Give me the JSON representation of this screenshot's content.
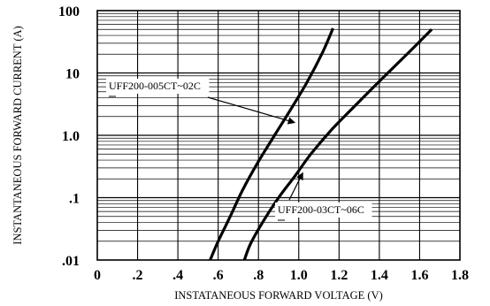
{
  "chart_data": {
    "type": "line",
    "title": "",
    "xlabel": "INSTATANEOUS FORWARD VOLTAGE (V)",
    "ylabel": "INSTANTANEOUS FORWARD CURRENT (A)",
    "xlim": [
      0,
      1.8
    ],
    "ylim": [
      0.01,
      100
    ],
    "y_scale": "log",
    "grid": true,
    "x_ticks": [
      "0",
      ".2",
      ".4",
      ".6",
      ".8",
      "1.0",
      "1.2",
      "1.4",
      "1.6",
      "1.8"
    ],
    "y_ticks": [
      ".01",
      ".1",
      "1.0",
      "10",
      "100"
    ],
    "series": [
      {
        "name": "UFF200-005CT~02C",
        "x": [
          0.56,
          0.6,
          0.66,
          0.72,
          0.8,
          0.88,
          0.96,
          1.04,
          1.12,
          1.17
        ],
        "y": [
          0.01,
          0.02,
          0.05,
          0.13,
          0.38,
          1.0,
          2.6,
          7.0,
          22,
          52
        ]
      },
      {
        "name": "UFF200-03CT~06C",
        "x": [
          0.73,
          0.76,
          0.82,
          0.9,
          0.98,
          1.06,
          1.16,
          1.28,
          1.42,
          1.55,
          1.66
        ],
        "y": [
          0.01,
          0.018,
          0.04,
          0.1,
          0.22,
          0.5,
          1.2,
          3.0,
          8.5,
          22,
          50
        ]
      }
    ],
    "annotations": [
      {
        "text": "UFF200-005CT~02C",
        "target_series": 0,
        "at": [
          0.98,
          1.6
        ]
      },
      {
        "text": "UFF200-03CT~06C",
        "target_series": 1,
        "at": [
          1.02,
          0.25
        ]
      }
    ]
  }
}
